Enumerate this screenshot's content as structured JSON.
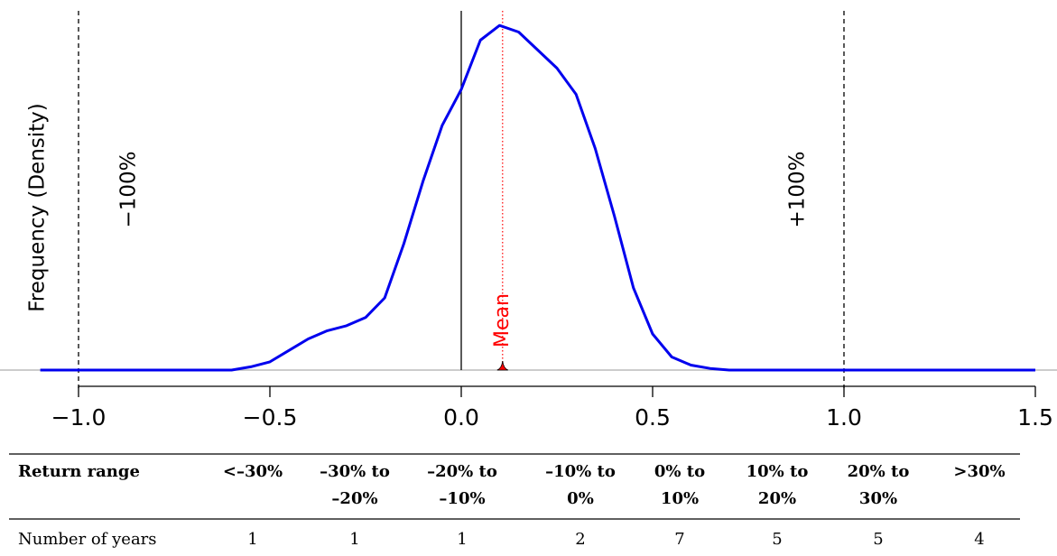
{
  "chart_data": {
    "type": "line",
    "y_label": "Frequency (Density)",
    "x": [
      -1.1,
      -1.0,
      -0.9,
      -0.8,
      -0.7,
      -0.6,
      -0.55,
      -0.5,
      -0.45,
      -0.4,
      -0.35,
      -0.3,
      -0.25,
      -0.2,
      -0.15,
      -0.1,
      -0.05,
      0.0,
      0.05,
      0.1,
      0.15,
      0.2,
      0.25,
      0.3,
      0.35,
      0.4,
      0.45,
      0.5,
      0.55,
      0.6,
      0.65,
      0.7,
      0.8,
      0.9,
      1.0,
      1.1,
      1.2,
      1.3,
      1.4,
      1.5
    ],
    "values": [
      0,
      0,
      0,
      0,
      0,
      0,
      0.02,
      0.05,
      0.12,
      0.19,
      0.24,
      0.27,
      0.32,
      0.44,
      0.77,
      1.15,
      1.49,
      1.71,
      2.01,
      2.1,
      2.06,
      1.95,
      1.84,
      1.68,
      1.35,
      0.94,
      0.5,
      0.22,
      0.08,
      0.03,
      0.01,
      0,
      0,
      0,
      0,
      0,
      0,
      0,
      0,
      0
    ],
    "color": "#0000ee",
    "xlim": [
      -1.2,
      1.55
    ],
    "ylim": [
      0,
      2.2
    ],
    "xticks": [
      {
        "value": -1.0,
        "label": "−1.0"
      },
      {
        "value": -0.5,
        "label": "−0.5"
      },
      {
        "value": 0,
        "label": "0.0"
      },
      0.5,
      {
        "value": 1.0,
        "label": "1.0"
      },
      1.5
    ],
    "mean": {
      "value": 0.108,
      "label": "Mean",
      "color": "#ff0000"
    },
    "reference_lines": [
      {
        "value": -1.0,
        "label": "−100%"
      },
      {
        "value": 1.0,
        "label": "+100%"
      }
    ]
  },
  "table": {
    "header": "Return range",
    "columns": [
      [
        "<–30%"
      ],
      [
        "–30% to",
        "–20%"
      ],
      [
        "–20% to",
        "–10%"
      ],
      [
        "–10% to",
        "0%"
      ],
      [
        "0% to",
        "10%"
      ],
      [
        "10% to",
        "20%"
      ],
      [
        "20% to",
        "30%"
      ],
      [
        ">30%"
      ]
    ],
    "row_label": "Number of years",
    "counts": [
      1,
      1,
      1,
      2,
      7,
      5,
      5,
      4
    ]
  }
}
